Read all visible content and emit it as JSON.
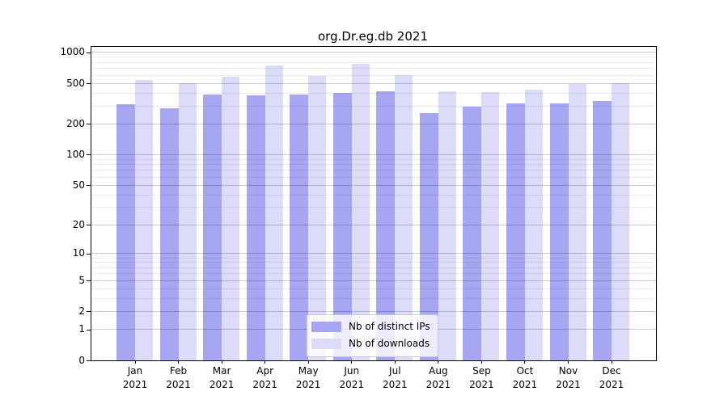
{
  "window": {
    "background": "#ffffff"
  },
  "chart_data": {
    "type": "bar",
    "title": "org.Dr.eg.db 2021",
    "xlabel": "",
    "ylabel": "",
    "scale": "log1p",
    "ylim": [
      0,
      1120
    ],
    "grid": "on",
    "legend_position": "lower center",
    "categories": [
      "Jan",
      "Feb",
      "Mar",
      "Apr",
      "May",
      "Jun",
      "Jul",
      "Aug",
      "Sep",
      "Oct",
      "Nov",
      "Dec"
    ],
    "year_label": "2021",
    "series": [
      {
        "name": "Nb of distinct IPs",
        "color": "#a6a6f2",
        "values": [
          313,
          285,
          389,
          381,
          389,
          403,
          418,
          256,
          296,
          318,
          318,
          333
        ]
      },
      {
        "name": "Nb of downloads",
        "color": "#dcdcf9",
        "values": [
          538,
          497,
          580,
          747,
          590,
          775,
          602,
          418,
          410,
          433,
          488,
          497
        ]
      }
    ],
    "yticks": [
      0,
      1,
      2,
      5,
      10,
      20,
      50,
      100,
      200,
      500,
      1000
    ],
    "minor_yticks": [
      3,
      4,
      6,
      7,
      8,
      9,
      30,
      40,
      60,
      70,
      80,
      90,
      300,
      400,
      600,
      700,
      800,
      900
    ],
    "axis_color": "#000000",
    "major_grid_color": "#cccccc",
    "minor_grid_color": "#ededed"
  }
}
